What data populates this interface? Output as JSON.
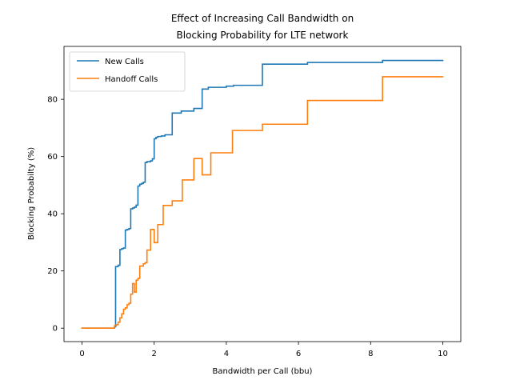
{
  "chart_data": {
    "type": "line",
    "title_line1": "Effect of Increasing Call Bandwidth on",
    "title_line2": "Blocking Probability for LTE network",
    "xlabel": "Bandwidth per Call (bbu)",
    "ylabel": "Blocking Probabilty (%)",
    "xlim": [
      -0.5,
      10.5
    ],
    "ylim": [
      -4.7,
      98.5
    ],
    "x_ticks": [
      0,
      2,
      4,
      6,
      8,
      10
    ],
    "y_ticks": [
      0,
      20,
      40,
      60,
      80
    ],
    "grid": false,
    "legend_position": "top-left",
    "series": [
      {
        "name": "New Calls",
        "color": "#1f77b4",
        "step": true,
        "points": [
          [
            0,
            0
          ],
          [
            0.85,
            0
          ],
          [
            0.9,
            0.5
          ],
          [
            0.93,
            21.5
          ],
          [
            1.0,
            22
          ],
          [
            1.05,
            27.5
          ],
          [
            1.1,
            27.8
          ],
          [
            1.15,
            28
          ],
          [
            1.2,
            34.3
          ],
          [
            1.25,
            34.5
          ],
          [
            1.3,
            34.8
          ],
          [
            1.35,
            41.7
          ],
          [
            1.4,
            42
          ],
          [
            1.45,
            42.3
          ],
          [
            1.5,
            43
          ],
          [
            1.55,
            49.7
          ],
          [
            1.6,
            50.3
          ],
          [
            1.65,
            50.6
          ],
          [
            1.7,
            51
          ],
          [
            1.75,
            57.9
          ],
          [
            1.8,
            58.2
          ],
          [
            1.9,
            58.5
          ],
          [
            1.95,
            59.2
          ],
          [
            2.0,
            66.2
          ],
          [
            2.05,
            66.7
          ],
          [
            2.1,
            67
          ],
          [
            2.2,
            67.2
          ],
          [
            2.3,
            67.6
          ],
          [
            2.5,
            75.2
          ],
          [
            2.75,
            75.9
          ],
          [
            3.1,
            76.8
          ],
          [
            3.33,
            83.6
          ],
          [
            3.5,
            84.2
          ],
          [
            4.0,
            84.6
          ],
          [
            4.2,
            84.9
          ],
          [
            5.0,
            92.3
          ],
          [
            6.25,
            92.9
          ],
          [
            8.33,
            93.6
          ],
          [
            10.0,
            93.6
          ]
        ]
      },
      {
        "name": "Handoff Calls",
        "color": "#ff7f0e",
        "step": true,
        "points": [
          [
            0,
            0
          ],
          [
            0.85,
            0
          ],
          [
            0.9,
            0.8
          ],
          [
            0.95,
            1.2
          ],
          [
            1.0,
            2.1
          ],
          [
            1.05,
            3.6
          ],
          [
            1.1,
            5.0
          ],
          [
            1.15,
            6.6
          ],
          [
            1.2,
            7.1
          ],
          [
            1.25,
            8.2
          ],
          [
            1.3,
            8.7
          ],
          [
            1.35,
            11.9
          ],
          [
            1.4,
            15.6
          ],
          [
            1.45,
            12.6
          ],
          [
            1.5,
            16.8
          ],
          [
            1.55,
            17.4
          ],
          [
            1.6,
            21.7
          ],
          [
            1.7,
            22.5
          ],
          [
            1.75,
            22.9
          ],
          [
            1.8,
            27.3
          ],
          [
            1.9,
            34.5
          ],
          [
            2.0,
            29.9
          ],
          [
            2.1,
            36.2
          ],
          [
            2.25,
            42.9
          ],
          [
            2.5,
            44.5
          ],
          [
            2.78,
            51.8
          ],
          [
            3.1,
            59.3
          ],
          [
            3.33,
            53.6
          ],
          [
            3.57,
            61.3
          ],
          [
            4.17,
            69.1
          ],
          [
            5.0,
            71.3
          ],
          [
            6.25,
            79.6
          ],
          [
            8.33,
            87.9
          ],
          [
            10.0,
            87.9
          ]
        ]
      }
    ]
  }
}
